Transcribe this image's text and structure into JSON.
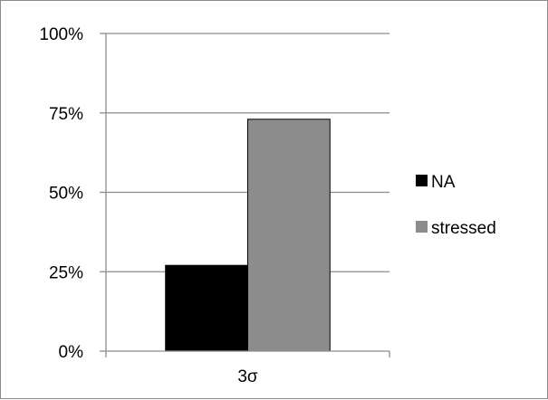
{
  "chart_data": {
    "type": "bar",
    "categories": [
      "3σ"
    ],
    "series": [
      {
        "name": "NA",
        "values": [
          0.27
        ],
        "color": "#000000"
      },
      {
        "name": "stressed",
        "values": [
          0.73
        ],
        "color": "#8c8c8c"
      }
    ],
    "ylim": [
      0,
      1
    ],
    "yticks": [
      {
        "value": 0,
        "label": "0%"
      },
      {
        "value": 0.25,
        "label": "25%"
      },
      {
        "value": 0.5,
        "label": "50%"
      },
      {
        "value": 0.75,
        "label": "75%"
      },
      {
        "value": 1,
        "label": "100%"
      }
    ],
    "grid": true,
    "legend": "right",
    "gridline_color": "#8c8c8c",
    "axis_color": "#8c8c8c"
  }
}
